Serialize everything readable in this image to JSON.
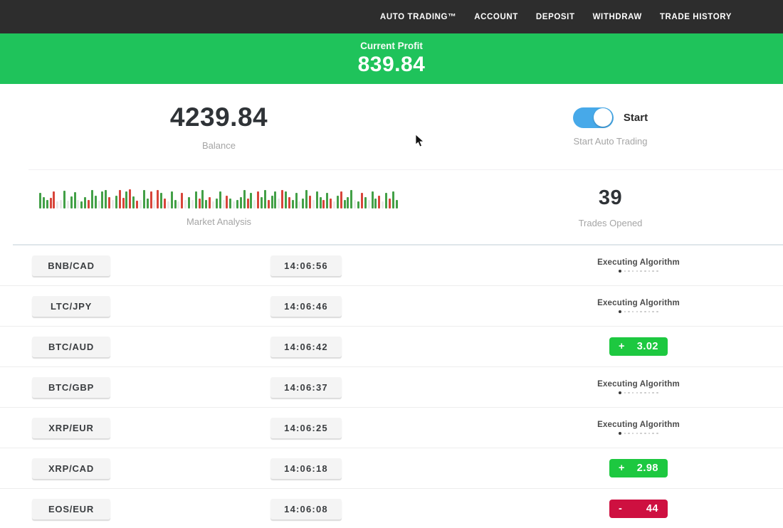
{
  "nav": {
    "items": [
      {
        "label": "AUTO TRADING™"
      },
      {
        "label": "ACCOUNT"
      },
      {
        "label": "DEPOSIT"
      },
      {
        "label": "WITHDRAW"
      },
      {
        "label": "TRADE HISTORY"
      }
    ]
  },
  "profit_banner": {
    "label": "Current Profit",
    "value": "839.84"
  },
  "stats": {
    "balance": {
      "value": "4239.84",
      "label": "Balance"
    },
    "auto_trading": {
      "toggle_label": "Start",
      "label": "Start Auto Trading",
      "toggle_on": true
    },
    "trades": {
      "value": "39",
      "label": "Trades Opened"
    }
  },
  "market_analysis": {
    "label": "Market Analysis",
    "palette": {
      "green": "#43a047",
      "red": "#d8453a",
      "pale": "#e9e9e9"
    },
    "bars": [
      [
        22,
        0
      ],
      [
        16,
        0
      ],
      [
        12,
        0
      ],
      [
        15,
        1
      ],
      [
        24,
        1
      ],
      [
        10,
        2
      ],
      [
        12,
        2
      ],
      [
        25,
        0
      ],
      [
        11,
        2
      ],
      [
        17,
        0
      ],
      [
        23,
        0
      ],
      [
        12,
        2
      ],
      [
        10,
        0
      ],
      [
        16,
        0
      ],
      [
        12,
        1
      ],
      [
        26,
        0
      ],
      [
        18,
        0
      ],
      [
        11,
        2
      ],
      [
        24,
        0
      ],
      [
        26,
        0
      ],
      [
        16,
        1
      ],
      [
        12,
        2
      ],
      [
        18,
        0
      ],
      [
        26,
        1
      ],
      [
        15,
        1
      ],
      [
        24,
        0
      ],
      [
        27,
        1
      ],
      [
        17,
        0
      ],
      [
        11,
        1
      ],
      [
        12,
        2
      ],
      [
        26,
        0
      ],
      [
        14,
        0
      ],
      [
        24,
        1
      ],
      [
        12,
        2
      ],
      [
        26,
        1
      ],
      [
        22,
        0
      ],
      [
        14,
        1
      ],
      [
        10,
        2
      ],
      [
        24,
        0
      ],
      [
        12,
        0
      ],
      [
        10,
        2
      ],
      [
        22,
        1
      ],
      [
        12,
        2
      ],
      [
        16,
        0
      ],
      [
        12,
        2
      ],
      [
        24,
        0
      ],
      [
        14,
        1
      ],
      [
        26,
        0
      ],
      [
        12,
        0
      ],
      [
        16,
        1
      ],
      [
        10,
        2
      ],
      [
        14,
        0
      ],
      [
        24,
        0
      ],
      [
        12,
        2
      ],
      [
        18,
        1
      ],
      [
        14,
        0
      ],
      [
        10,
        2
      ],
      [
        12,
        0
      ],
      [
        16,
        0
      ],
      [
        26,
        0
      ],
      [
        14,
        1
      ],
      [
        22,
        0
      ],
      [
        12,
        2
      ],
      [
        24,
        1
      ],
      [
        16,
        0
      ],
      [
        26,
        0
      ],
      [
        12,
        1
      ],
      [
        18,
        0
      ],
      [
        24,
        0
      ],
      [
        14,
        2
      ],
      [
        26,
        1
      ],
      [
        24,
        0
      ],
      [
        16,
        1
      ],
      [
        12,
        0
      ],
      [
        22,
        0
      ],
      [
        10,
        2
      ],
      [
        14,
        0
      ],
      [
        26,
        0
      ],
      [
        18,
        1
      ],
      [
        12,
        2
      ],
      [
        24,
        0
      ],
      [
        16,
        0
      ],
      [
        12,
        1
      ],
      [
        22,
        0
      ],
      [
        14,
        1
      ],
      [
        10,
        2
      ],
      [
        18,
        0
      ],
      [
        24,
        1
      ],
      [
        12,
        0
      ],
      [
        16,
        0
      ],
      [
        26,
        0
      ],
      [
        12,
        2
      ],
      [
        10,
        0
      ],
      [
        22,
        1
      ],
      [
        16,
        0
      ],
      [
        12,
        2
      ],
      [
        24,
        0
      ],
      [
        14,
        0
      ],
      [
        18,
        1
      ],
      [
        10,
        2
      ],
      [
        22,
        0
      ],
      [
        14,
        1
      ],
      [
        24,
        0
      ],
      [
        12,
        0
      ]
    ]
  },
  "table": {
    "rows": [
      {
        "pair": "BNB/CAD",
        "time": "14:06:56",
        "status": {
          "type": "executing",
          "label": "Executing Algorithm"
        }
      },
      {
        "pair": "LTC/JPY",
        "time": "14:06:46",
        "status": {
          "type": "executing",
          "label": "Executing Algorithm"
        }
      },
      {
        "pair": "BTC/AUD",
        "time": "14:06:42",
        "status": {
          "type": "profit",
          "sign": "+",
          "value": "3.02"
        }
      },
      {
        "pair": "BTC/GBP",
        "time": "14:06:37",
        "status": {
          "type": "executing",
          "label": "Executing Algorithm"
        }
      },
      {
        "pair": "XRP/EUR",
        "time": "14:06:25",
        "status": {
          "type": "executing",
          "label": "Executing Algorithm"
        }
      },
      {
        "pair": "XRP/CAD",
        "time": "14:06:18",
        "status": {
          "type": "profit",
          "sign": "+",
          "value": "2.98"
        }
      },
      {
        "pair": "EOS/EUR",
        "time": "14:06:08",
        "status": {
          "type": "loss",
          "sign": "-",
          "value": "44"
        }
      }
    ]
  },
  "colors": {
    "nav_bg": "#2d2d2d",
    "banner_green": "#1fc35b",
    "badge_green": "#1dc840",
    "badge_red": "#ce1040",
    "toggle_blue": "#47a9e9"
  }
}
